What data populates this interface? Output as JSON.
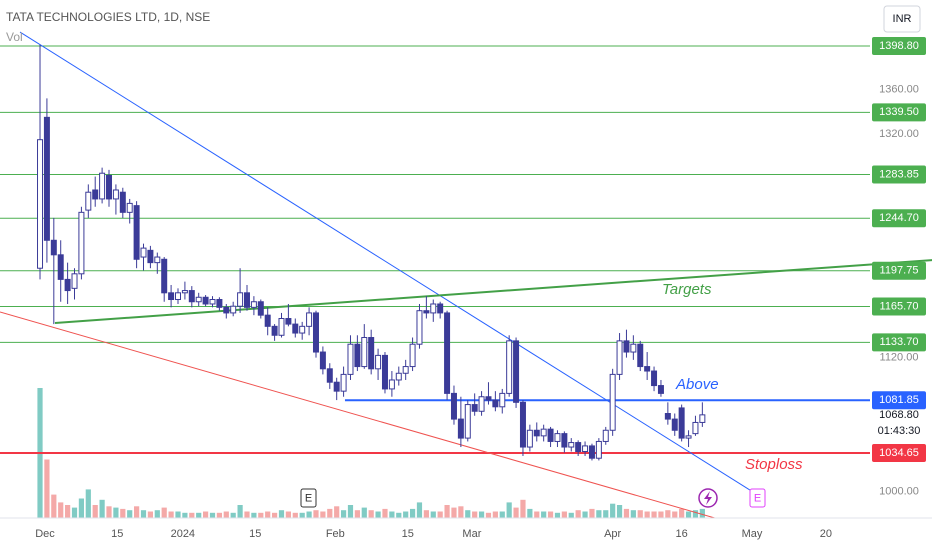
{
  "chart_data": {
    "type": "candlestick",
    "title": "TATA TECHNOLOGIES LTD, 1D, NSE",
    "volume_label": "Vol",
    "currency": "INR",
    "xlim": [
      -5.8,
      120.3
    ],
    "ylim": [
      976.5,
      1440
    ],
    "vlim": [
      0,
      100
    ],
    "up_color": "#ffffff",
    "down_color": "#3b3b98",
    "edge_color": "#3b3b98",
    "vol_up_color": "#80cbc4",
    "vol_down_color": "#f4a9a8",
    "xticks": [
      {
        "value": 0.72,
        "label": "Dec"
      },
      {
        "value": 11.2,
        "label": "15"
      },
      {
        "value": 20.7,
        "label": "2024"
      },
      {
        "value": 31.2,
        "label": "15"
      },
      {
        "value": 42.8,
        "label": "Feb"
      },
      {
        "value": 53.3,
        "label": "15"
      },
      {
        "value": 62.6,
        "label": "Mar"
      },
      {
        "value": 83,
        "label": "Apr"
      },
      {
        "value": 93,
        "label": "16"
      },
      {
        "value": 103.2,
        "label": "May"
      },
      {
        "value": 113.9,
        "label": "20"
      }
    ],
    "yticks": [
      {
        "value": 1360,
        "label": "1360.00"
      },
      {
        "value": 1320,
        "label": "1320.00"
      },
      {
        "value": 1120,
        "label": "1120.00"
      },
      {
        "value": 1000,
        "label": "1000.00"
      }
    ],
    "levels": [
      {
        "value": 1398.8,
        "label": "1398.80",
        "color": "#4caf50",
        "width": 1
      },
      {
        "value": 1339.5,
        "label": "1339.50",
        "color": "#4caf50",
        "width": 1
      },
      {
        "value": 1283.85,
        "label": "1283.85",
        "color": "#4caf50",
        "width": 1
      },
      {
        "value": 1244.7,
        "label": "1244.70",
        "color": "#4caf50",
        "width": 1
      },
      {
        "value": 1197.75,
        "label": "1197.75",
        "color": "#4caf50",
        "width": 1
      },
      {
        "value": 1165.7,
        "label": "1165.70",
        "color": "#4caf50",
        "width": 1
      },
      {
        "value": 1133.7,
        "label": "1133.70",
        "color": "#4caf50",
        "width": 1
      },
      {
        "value": 1081.85,
        "label": "1081.85",
        "color": "#2962ff",
        "width": 2,
        "from": 44.2
      },
      {
        "value": 1034.65,
        "label": "1034.65",
        "color": "#f23645",
        "width": 2
      }
    ],
    "last_price": {
      "value": 1068.8,
      "label": "1068.80"
    },
    "countdown": "01:43:30",
    "trendlines": [
      {
        "color": "#2962ff",
        "width": 1,
        "points": [
          [
            -2.9,
            1411.3
          ],
          [
            102.9,
            1001.5
          ]
        ]
      },
      {
        "color": "#43a047",
        "width": 2,
        "points": [
          [
            2.17,
            1151
          ],
          [
            129.3,
            1207.3
          ]
        ]
      },
      {
        "color": "#ef5350",
        "width": 1,
        "points": [
          [
            -5.8,
            1160.8
          ],
          [
            97.8,
            976.5
          ]
        ]
      }
    ],
    "annotations": [
      "Targets",
      "Above",
      "Stoploss"
    ],
    "events": [
      "E",
      "E"
    ],
    "ohlc": [
      [
        1200,
        1400,
        1190,
        1315
      ],
      [
        1335,
        1352,
        1205,
        1225
      ],
      [
        1225,
        1245,
        1150,
        1212
      ],
      [
        1212,
        1225,
        1170,
        1190
      ],
      [
        1190,
        1205,
        1168,
        1180
      ],
      [
        1182,
        1200,
        1172,
        1195
      ],
      [
        1195,
        1255,
        1190,
        1250
      ],
      [
        1252,
        1275,
        1245,
        1268
      ],
      [
        1270,
        1282,
        1255,
        1262
      ],
      [
        1262,
        1290,
        1258,
        1285
      ],
      [
        1283,
        1288,
        1255,
        1262
      ],
      [
        1262,
        1275,
        1248,
        1270
      ],
      [
        1268,
        1272,
        1245,
        1250
      ],
      [
        1250,
        1262,
        1240,
        1258
      ],
      [
        1256,
        1260,
        1200,
        1208
      ],
      [
        1210,
        1222,
        1198,
        1218
      ],
      [
        1216,
        1220,
        1200,
        1205
      ],
      [
        1205,
        1214,
        1195,
        1210
      ],
      [
        1208,
        1210,
        1170,
        1178
      ],
      [
        1178,
        1185,
        1165,
        1172
      ],
      [
        1172,
        1182,
        1168,
        1178
      ],
      [
        1178,
        1188,
        1172,
        1180
      ],
      [
        1180,
        1184,
        1165,
        1170
      ],
      [
        1170,
        1178,
        1166,
        1174
      ],
      [
        1174,
        1176,
        1166,
        1168
      ],
      [
        1168,
        1175,
        1165,
        1172
      ],
      [
        1172,
        1174,
        1162,
        1165
      ],
      [
        1165,
        1168,
        1155,
        1160
      ],
      [
        1160,
        1170,
        1157,
        1166
      ],
      [
        1166,
        1200,
        1160,
        1178
      ],
      [
        1178,
        1185,
        1162,
        1165
      ],
      [
        1165,
        1175,
        1158,
        1170
      ],
      [
        1170,
        1172,
        1155,
        1158
      ],
      [
        1158,
        1165,
        1140,
        1148
      ],
      [
        1148,
        1150,
        1135,
        1140
      ],
      [
        1140,
        1160,
        1138,
        1155
      ],
      [
        1155,
        1168,
        1148,
        1150
      ],
      [
        1150,
        1155,
        1138,
        1142
      ],
      [
        1142,
        1152,
        1136,
        1148
      ],
      [
        1148,
        1165,
        1140,
        1160
      ],
      [
        1160,
        1162,
        1120,
        1125
      ],
      [
        1125,
        1130,
        1105,
        1110
      ],
      [
        1110,
        1115,
        1092,
        1098
      ],
      [
        1098,
        1102,
        1082,
        1090
      ],
      [
        1090,
        1112,
        1085,
        1105
      ],
      [
        1105,
        1140,
        1100,
        1132
      ],
      [
        1132,
        1140,
        1108,
        1112
      ],
      [
        1112,
        1150,
        1110,
        1138
      ],
      [
        1138,
        1145,
        1105,
        1110
      ],
      [
        1110,
        1128,
        1100,
        1122
      ],
      [
        1122,
        1125,
        1088,
        1092
      ],
      [
        1092,
        1108,
        1085,
        1100
      ],
      [
        1100,
        1112,
        1095,
        1106
      ],
      [
        1106,
        1118,
        1100,
        1112
      ],
      [
        1112,
        1138,
        1108,
        1132
      ],
      [
        1132,
        1168,
        1128,
        1162
      ],
      [
        1162,
        1175,
        1155,
        1160
      ],
      [
        1160,
        1172,
        1152,
        1168
      ],
      [
        1168,
        1170,
        1155,
        1160
      ],
      [
        1160,
        1162,
        1082,
        1088
      ],
      [
        1088,
        1095,
        1060,
        1065
      ],
      [
        1065,
        1085,
        1040,
        1048
      ],
      [
        1048,
        1082,
        1045,
        1078
      ],
      [
        1078,
        1088,
        1068,
        1072
      ],
      [
        1072,
        1090,
        1068,
        1085
      ],
      [
        1085,
        1098,
        1078,
        1082
      ],
      [
        1082,
        1090,
        1072,
        1076
      ],
      [
        1076,
        1092,
        1070,
        1088
      ],
      [
        1088,
        1140,
        1085,
        1135
      ],
      [
        1135,
        1138,
        1075,
        1080
      ],
      [
        1080,
        1082,
        1032,
        1040
      ],
      [
        1040,
        1060,
        1036,
        1055
      ],
      [
        1055,
        1062,
        1045,
        1050
      ],
      [
        1050,
        1060,
        1045,
        1056
      ],
      [
        1056,
        1058,
        1040,
        1045
      ],
      [
        1045,
        1055,
        1040,
        1052
      ],
      [
        1052,
        1054,
        1035,
        1040
      ],
      [
        1040,
        1048,
        1036,
        1044
      ],
      [
        1044,
        1046,
        1032,
        1036
      ],
      [
        1036,
        1045,
        1032,
        1041
      ],
      [
        1041,
        1043,
        1028,
        1030
      ],
      [
        1030,
        1048,
        1028,
        1045
      ],
      [
        1045,
        1058,
        1042,
        1055
      ],
      [
        1055,
        1110,
        1050,
        1105
      ],
      [
        1105,
        1142,
        1100,
        1135
      ],
      [
        1135,
        1145,
        1120,
        1125
      ],
      [
        1125,
        1140,
        1118,
        1132
      ],
      [
        1132,
        1135,
        1108,
        1112
      ],
      [
        1112,
        1125,
        1100,
        1108
      ],
      [
        1108,
        1112,
        1090,
        1095
      ],
      [
        1095,
        1100,
        1085,
        1088
      ],
      [
        1070,
        1080,
        1060,
        1065
      ],
      [
        1065,
        1070,
        1050,
        1055
      ],
      [
        1075,
        1078,
        1045,
        1048
      ],
      [
        1048,
        1055,
        1040,
        1050
      ],
      [
        1052,
        1068,
        1050,
        1062
      ],
      [
        1062,
        1080,
        1058,
        1068.8
      ]
    ],
    "volume": [
      100,
      45,
      18,
      12,
      10,
      8,
      15,
      22,
      10,
      14,
      9,
      8,
      7,
      6,
      9,
      6,
      5,
      6,
      8,
      5,
      5,
      4,
      4,
      4,
      5,
      4,
      4,
      5,
      4,
      10,
      5,
      4,
      4,
      5,
      4,
      6,
      5,
      4,
      4,
      5,
      6,
      5,
      7,
      9,
      6,
      10,
      6,
      8,
      6,
      5,
      7,
      5,
      4,
      5,
      7,
      12,
      6,
      5,
      5,
      10,
      8,
      9,
      6,
      5,
      5,
      4,
      5,
      5,
      12,
      8,
      14,
      7,
      5,
      5,
      5,
      4,
      5,
      4,
      6,
      5,
      7,
      6,
      6,
      11,
      10,
      7,
      6,
      6,
      5,
      5,
      5,
      6,
      5,
      7,
      5,
      6,
      7
    ]
  }
}
